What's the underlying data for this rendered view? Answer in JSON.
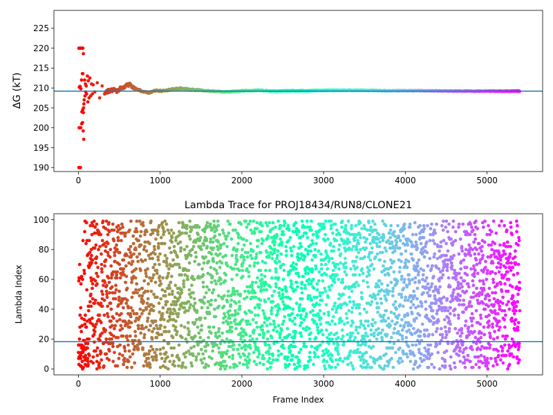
{
  "chart_data": [
    {
      "type": "scatter",
      "title": "",
      "xlabel": "",
      "ylabel": "ΔG (kT)",
      "xlim": [
        -300,
        5680
      ],
      "ylim": [
        189,
        229.5
      ],
      "xticks": [
        0,
        1000,
        2000,
        3000,
        4000,
        5000
      ],
      "yticks": [
        190,
        195,
        200,
        205,
        210,
        215,
        220,
        225
      ],
      "hline": 209.2,
      "hline_color": "#1f77b4",
      "colormap": "rainbow_r",
      "grid": false,
      "legend": "none",
      "points": [
        [
          5,
          190
        ],
        [
          15,
          190
        ],
        [
          25,
          190
        ],
        [
          5,
          220
        ],
        [
          15,
          220
        ],
        [
          25,
          220
        ],
        [
          35,
          220
        ],
        [
          45,
          220
        ],
        [
          55,
          220
        ],
        [
          60,
          218.6
        ],
        [
          8,
          200
        ],
        [
          18,
          200
        ],
        [
          30,
          200
        ],
        [
          40,
          201
        ],
        [
          50,
          201.3
        ],
        [
          58,
          199.2
        ],
        [
          65,
          197.1
        ],
        [
          10,
          210.2
        ],
        [
          20,
          210.4
        ],
        [
          30,
          209.8
        ],
        [
          38,
          212
        ],
        [
          42,
          204
        ],
        [
          48,
          213.6
        ],
        [
          52,
          204.5
        ],
        [
          55,
          213.6
        ],
        [
          60,
          203.8
        ],
        [
          62,
          205
        ],
        [
          66,
          206
        ],
        [
          70,
          207
        ],
        [
          75,
          212
        ],
        [
          80,
          208
        ],
        [
          85,
          211
        ],
        [
          90,
          209
        ],
        [
          95,
          210.5
        ],
        [
          100,
          208.5
        ],
        [
          110,
          213
        ],
        [
          115,
          206.5
        ],
        [
          120,
          211.8
        ],
        [
          130,
          207.5
        ],
        [
          140,
          212.5
        ],
        [
          150,
          208
        ],
        [
          160,
          211
        ],
        [
          170,
          208.5
        ],
        [
          180,
          210.8
        ],
        [
          200,
          209
        ],
        [
          230,
          211.3
        ],
        [
          260,
          207.5
        ],
        [
          290,
          210.5
        ],
        [
          320,
          208.5
        ]
      ],
      "trace": [
        [
          330,
          209.0
        ],
        [
          400,
          209.5
        ],
        [
          470,
          209.3
        ],
        [
          530,
          210.0
        ],
        [
          580,
          210.5
        ],
        [
          620,
          210.8
        ],
        [
          700,
          209.8
        ],
        [
          780,
          209.2
        ],
        [
          860,
          208.8
        ],
        [
          950,
          209.3
        ],
        [
          1050,
          209.3
        ],
        [
          1150,
          209.7
        ],
        [
          1250,
          209.9
        ],
        [
          1350,
          209.6
        ],
        [
          1500,
          209.4
        ],
        [
          1650,
          209.2
        ],
        [
          1800,
          209.0
        ],
        [
          2000,
          209.3
        ],
        [
          2200,
          209.4
        ],
        [
          2400,
          209.2
        ],
        [
          2600,
          209.3
        ],
        [
          2800,
          209.3
        ],
        [
          3000,
          209.4
        ],
        [
          3200,
          209.4
        ],
        [
          3500,
          209.4
        ],
        [
          3800,
          209.3
        ],
        [
          4200,
          209.3
        ],
        [
          4600,
          209.2
        ],
        [
          5000,
          209.2
        ],
        [
          5400,
          209.2
        ]
      ]
    },
    {
      "type": "scatter",
      "title": "Lambda Trace for PROJ18434/RUN8/CLONE21",
      "xlabel": "Frame Index",
      "ylabel": "Lambda Index",
      "xlim": [
        -300,
        5680
      ],
      "ylim": [
        -4,
        104
      ],
      "xticks": [
        0,
        1000,
        2000,
        3000,
        4000,
        5000
      ],
      "yticks": [
        0,
        20,
        40,
        60,
        80,
        100
      ],
      "hline": 18.3,
      "hline_color": "#1f77b4",
      "colormap": "rainbow_r",
      "grid": false,
      "legend": "none",
      "n_frames": 5400,
      "lambda_min": 0,
      "lambda_max": 99
    }
  ]
}
